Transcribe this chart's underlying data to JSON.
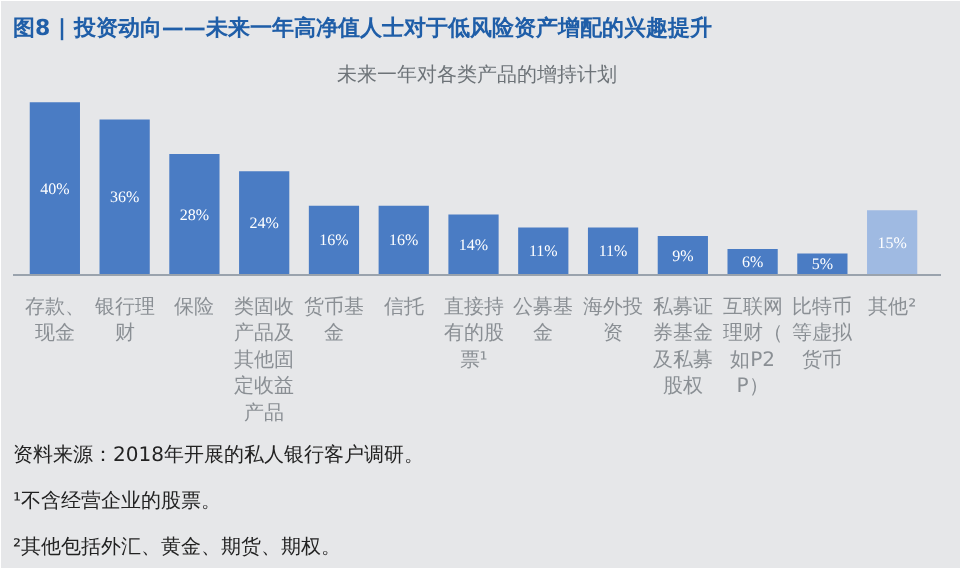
{
  "chart_data": {
    "type": "bar",
    "title": "图8 | 投资动向——未来一年高净值人士对于低风险资产增配的兴趣提升",
    "subtitle": "未来一年对各类产品的增持计划",
    "categories": [
      "存款、现金",
      "银行理财",
      "保险",
      "类固收产品及其他固定收益产品",
      "货币基金",
      "信托",
      "直接持有的股票¹",
      "公募基金",
      "海外投资",
      "私募证券基金及私募股权",
      "互联网理财（如P2P）",
      "比特币等虚拟货币",
      "其他²"
    ],
    "values": [
      40,
      36,
      28,
      24,
      16,
      16,
      14,
      11,
      11,
      9,
      6,
      5,
      15
    ],
    "colors": [
      "#4a7cc4",
      "#4a7cc4",
      "#4a7cc4",
      "#4a7cc4",
      "#4a7cc4",
      "#4a7cc4",
      "#4a7cc4",
      "#4a7cc4",
      "#4a7cc4",
      "#4a7cc4",
      "#4a7cc4",
      "#4a7cc4",
      "#9fbae2"
    ],
    "value_labels": [
      "40%",
      "36%",
      "28%",
      "24%",
      "16%",
      "16%",
      "14%",
      "11%",
      "11%",
      "9%",
      "6%",
      "5%",
      "15%"
    ],
    "annotations": [
      "资料来源：2018年开展的私人银行客户调研。",
      "¹不含经营企业的股票。",
      "²其他包括外汇、黄金、期货、期权。"
    ]
  }
}
